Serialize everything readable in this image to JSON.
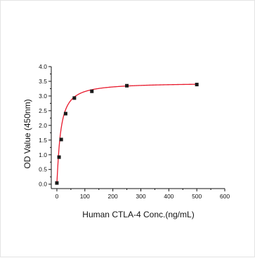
{
  "chart_data": {
    "type": "scatter",
    "title": "",
    "xlabel": "Human CTLA-4 Conc.(ng/mL)",
    "ylabel": "OD Value (450nm)",
    "xlim": [
      -20,
      600
    ],
    "ylim": [
      -0.15,
      4.0
    ],
    "x_ticks": [
      "0",
      "100",
      "200",
      "300",
      "400",
      "500",
      "600"
    ],
    "y_ticks": [
      "0.0",
      "0.5",
      "1.0",
      "1.5",
      "2.0",
      "2.5",
      "3.0",
      "3.5",
      "4.0"
    ],
    "grid": false,
    "legend": "none",
    "series": [
      {
        "marker": "square",
        "color": "#1a1a1a",
        "x": [
          0,
          7.8,
          15.6,
          31.25,
          62.5,
          125,
          250,
          500
        ],
        "y": [
          0.04,
          0.92,
          1.52,
          2.4,
          2.93,
          3.16,
          3.35,
          3.39
        ]
      }
    ],
    "fit_curve": {
      "color": "#e8192c",
      "model": "four-parameter logistic",
      "bottom": 0.03,
      "top": 3.45,
      "ec50": 13,
      "hill": 1.15
    }
  }
}
